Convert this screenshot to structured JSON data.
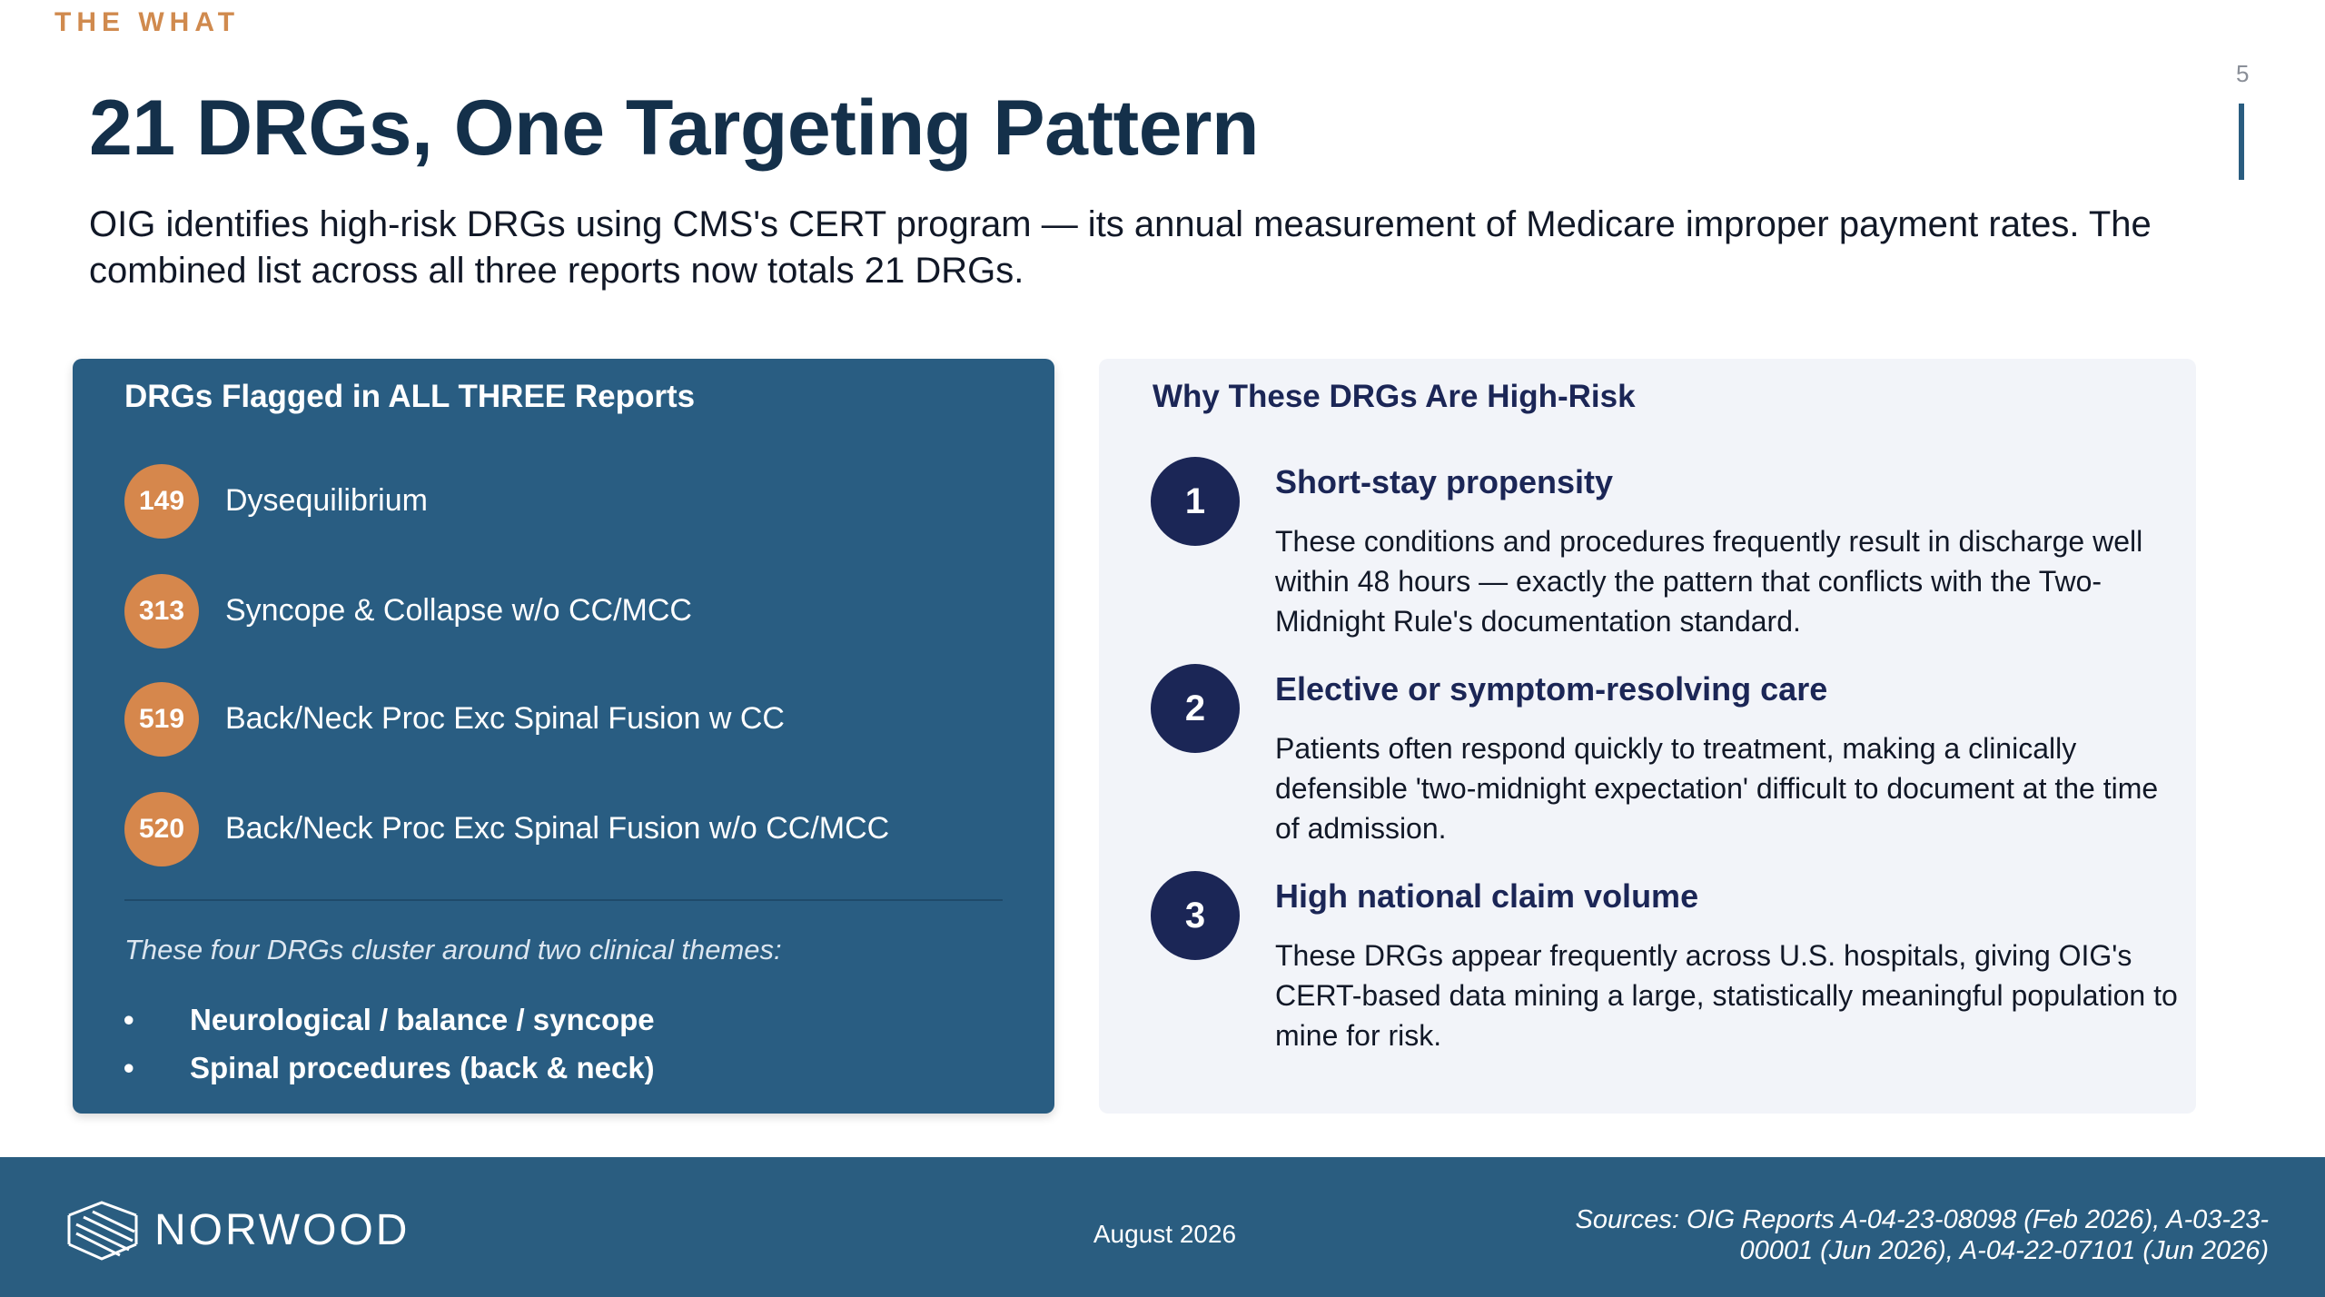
{
  "header": {
    "section": "THE WHAT",
    "page_number": "5",
    "title": "21 DRGs, One Targeting Pattern",
    "subtitle": "OIG identifies high-risk DRGs using CMS's CERT program — its annual measurement of Medicare improper payment rates. The combined list across all three reports now totals 21 DRGs."
  },
  "left_panel": {
    "heading": "DRGs Flagged in ALL THREE Reports",
    "items": [
      {
        "code": "149",
        "label": "Dysequilibrium"
      },
      {
        "code": "313",
        "label": "Syncope & Collapse w/o CC/MCC"
      },
      {
        "code": "519",
        "label": "Back/Neck Proc Exc Spinal Fusion w CC"
      },
      {
        "code": "520",
        "label": "Back/Neck Proc Exc Spinal Fusion w/o CC/MCC"
      }
    ],
    "note": "These four DRGs cluster around two clinical themes:",
    "bullets": [
      "Neurological / balance / syncope",
      "Spinal procedures (back & neck)"
    ]
  },
  "right_panel": {
    "heading": "Why These DRGs Are High-Risk",
    "items": [
      {
        "number": "1",
        "title": "Short-stay propensity",
        "body": "These conditions and procedures frequently result in discharge well within 48 hours — exactly the pattern that conflicts with the Two-Midnight Rule's documentation standard."
      },
      {
        "number": "2",
        "title": "Elective or symptom-resolving care",
        "body": "Patients often respond quickly to treatment, making a clinically defensible 'two-midnight expectation' difficult to document at the time of admission."
      },
      {
        "number": "3",
        "title": "High national claim volume",
        "body": "These DRGs appear frequently across U.S. hospitals, giving OIG's CERT-based data mining a large, statistically meaningful population to mine for risk."
      }
    ]
  },
  "footer": {
    "logo": "NORWOOD",
    "date": "August 2026",
    "sources": "Sources: OIG Reports A-04-23-08098 (Feb 2026), A-03-23-00001 (Jun 2026), A-04-22-07101 (Jun 2026)"
  }
}
